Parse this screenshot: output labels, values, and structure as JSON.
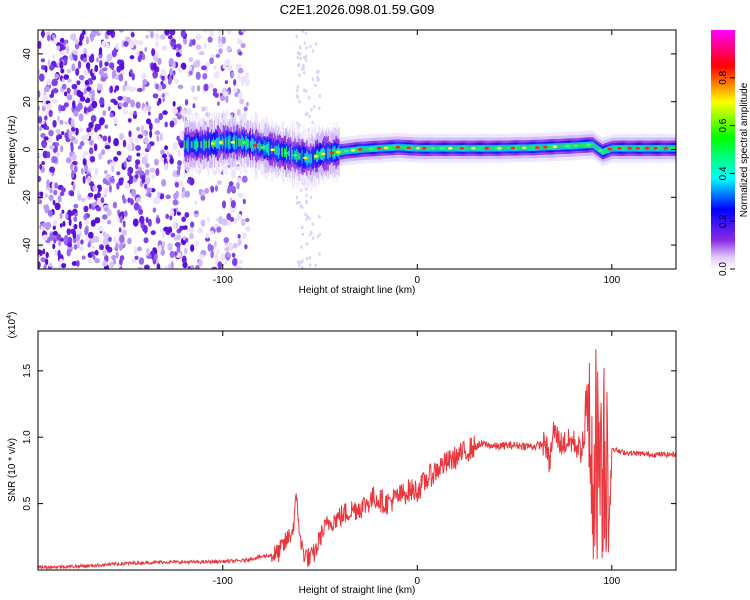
{
  "title": "C2E1.2026.098.01.59.G09",
  "chart_data": [
    {
      "type": "heatmap",
      "title": "C2E1.2026.098.01.59.G09",
      "xlabel": "Height of straight line (km)",
      "ylabel": "Frequency (Hz)",
      "xlim": [
        -195,
        133
      ],
      "ylim": [
        -50,
        50
      ],
      "xticks": [
        -100,
        0,
        100
      ],
      "xtick_labels": [
        "-100",
        "0",
        "100"
      ],
      "yticks": [
        -40,
        -20,
        0,
        20,
        40
      ],
      "ytick_labels": [
        "-40",
        "-20",
        "0",
        "20",
        "40"
      ],
      "colorbar": {
        "label": "Normalized spectral amplitude",
        "range": [
          0,
          1
        ],
        "ticks": [
          0,
          0.2,
          0.4,
          0.6,
          0.8
        ],
        "tick_labels": [
          "0.0",
          "0.2",
          "0.4",
          "0.6",
          "0.8"
        ],
        "colors": [
          "#ffffff",
          "#8a2be2",
          "#0000ff",
          "#00ffff",
          "#00ff00",
          "#ffff00",
          "#ff0000",
          "#ff00ff"
        ]
      },
      "signal_track": {
        "description_points_x": [
          -110,
          -100,
          -90,
          -80,
          -70,
          -60,
          -55,
          -50,
          -40,
          -30,
          -20,
          -10,
          0,
          20,
          40,
          60,
          80,
          90,
          95,
          100,
          110,
          133
        ],
        "center_freq_hz": [
          2,
          3,
          3,
          1,
          -1,
          -3,
          -4,
          -2,
          -1,
          0,
          0.5,
          1,
          0.5,
          0.5,
          0.5,
          0.8,
          1.5,
          2,
          -1,
          0.5,
          0.5,
          0.5
        ],
        "noise_region_x": [
          -195,
          -95
        ]
      }
    },
    {
      "type": "line",
      "xlabel": "Height of straight line (km)",
      "ylabel": "SNR (10 * v/v)",
      "y_multiplier": "(x10^4)",
      "y_multiplier_base": "(x10",
      "y_multiplier_exp": "4",
      "y_multiplier_close": ")",
      "xlim": [
        -195,
        133
      ],
      "ylim": [
        0,
        1.8
      ],
      "xticks": [
        -100,
        0,
        100
      ],
      "xtick_labels": [
        "-100",
        "0",
        "100"
      ],
      "yticks": [
        0.5,
        1.0,
        1.5
      ],
      "ytick_labels": [
        "0.5",
        "1.0",
        "1.5"
      ],
      "series": [
        {
          "name": "SNR",
          "color": "#e8383d",
          "x": [
            -195,
            -170,
            -150,
            -130,
            -110,
            -90,
            -80,
            -72,
            -68,
            -64,
            -62,
            -60,
            -58,
            -55,
            -52,
            -50,
            -46,
            -40,
            -34,
            -28,
            -22,
            -16,
            -10,
            -4,
            0,
            6,
            12,
            20,
            28,
            34,
            40,
            50,
            60,
            66,
            68,
            70,
            74,
            80,
            84,
            88,
            90,
            92,
            94,
            96,
            98,
            100,
            104,
            110,
            120,
            133
          ],
          "values": [
            0.02,
            0.03,
            0.05,
            0.06,
            0.06,
            0.07,
            0.1,
            0.12,
            0.2,
            0.3,
            0.55,
            0.2,
            0.12,
            0.08,
            0.15,
            0.25,
            0.35,
            0.4,
            0.45,
            0.48,
            0.55,
            0.5,
            0.55,
            0.6,
            0.6,
            0.7,
            0.78,
            0.85,
            0.92,
            0.95,
            0.93,
            0.94,
            0.93,
            0.95,
            0.8,
            1.05,
            0.95,
            0.97,
            0.9,
            1.1,
            0.6,
            1.6,
            0.15,
            1.4,
            0.1,
            0.92,
            0.89,
            0.88,
            0.87,
            0.87
          ]
        }
      ]
    }
  ]
}
